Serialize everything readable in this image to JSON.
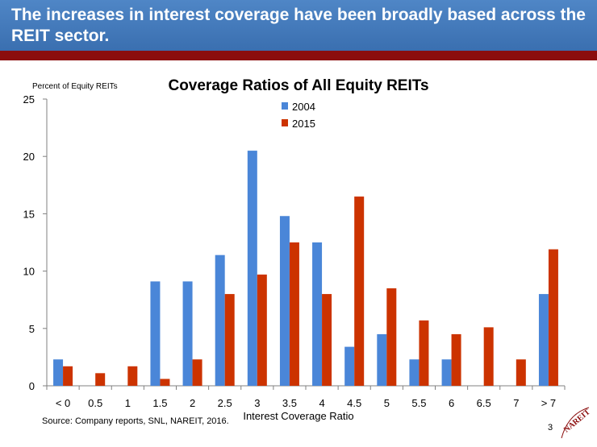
{
  "slide": {
    "title": "The increases in interest coverage have been broadly based across the REIT sector.",
    "source": "Source: Company reports, SNL, NAREIT, 2016.",
    "page_number": "3",
    "logo_text": "NAREIT"
  },
  "colors": {
    "banner": "#4a7fc1",
    "stripe": "#8b0d0d",
    "series_2004": "#4a86d8",
    "series_2015": "#cc3300"
  },
  "chart_data": {
    "type": "bar",
    "title": "Coverage Ratios of All Equity REITs",
    "ylabel": "Percent of Equity REITs",
    "xlabel": "Interest Coverage Ratio",
    "ylim": [
      0,
      25
    ],
    "yticks": [
      0,
      5,
      10,
      15,
      20,
      25
    ],
    "grid": false,
    "legend": "top-center",
    "categories": [
      "< 0",
      "0.5",
      "1",
      "1.5",
      "2",
      "2.5",
      "3",
      "3.5",
      "4",
      "4.5",
      "5",
      "5.5",
      "6",
      "6.5",
      "7",
      "> 7"
    ],
    "series": [
      {
        "name": "2004",
        "color": "#4a86d8",
        "values": [
          2.3,
          0,
          0,
          9.1,
          9.1,
          11.4,
          20.5,
          14.8,
          12.5,
          3.4,
          4.5,
          2.3,
          2.3,
          0,
          0,
          8.0
        ]
      },
      {
        "name": "2015",
        "color": "#cc3300",
        "values": [
          1.7,
          1.1,
          1.7,
          0.6,
          2.3,
          8.0,
          9.7,
          12.5,
          8.0,
          16.5,
          8.5,
          5.7,
          4.5,
          5.1,
          2.3,
          11.9
        ]
      }
    ]
  }
}
